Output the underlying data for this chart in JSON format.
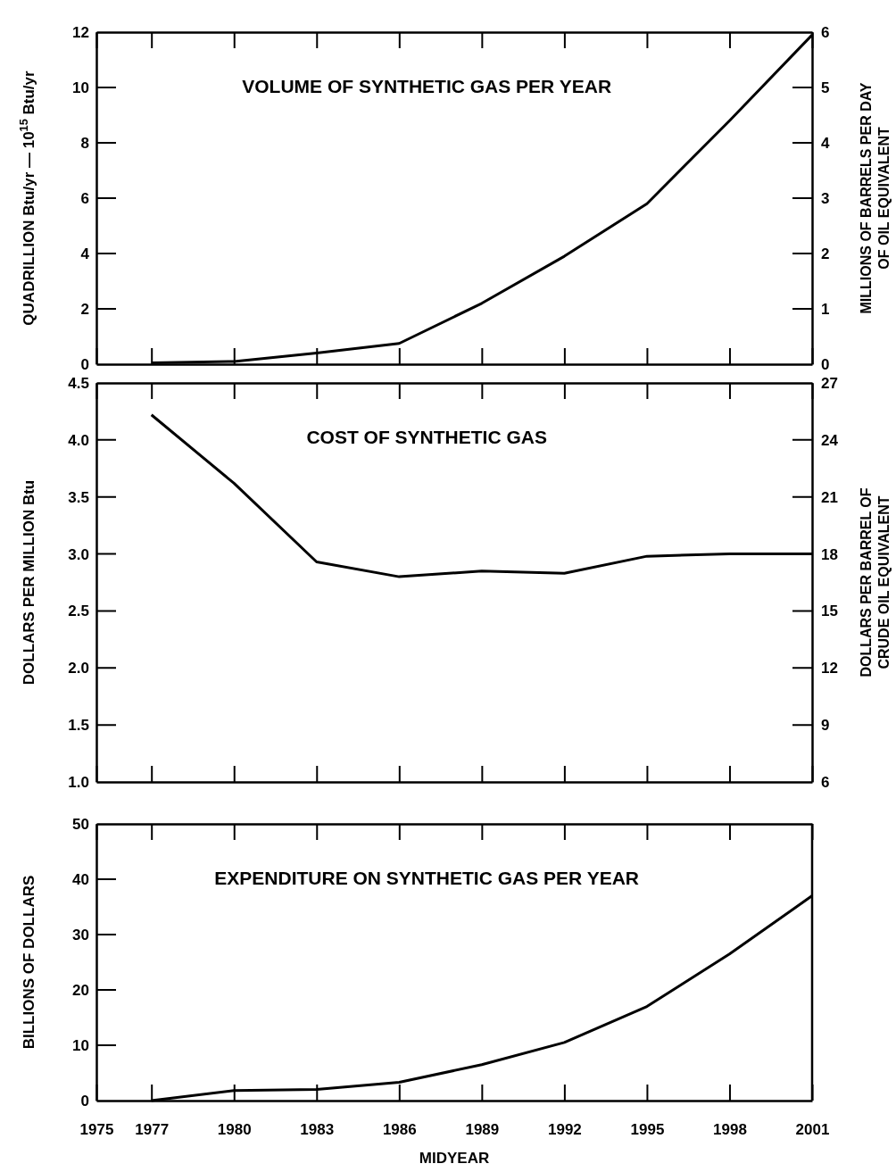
{
  "chart_data": [
    {
      "type": "line",
      "title": "VOLUME OF SYNTHETIC GAS PER YEAR",
      "ylabel": "QUADRILLION Btu/yr — 10$^{15}$ Btu/yr",
      "y2label": "MILLIONS OF BARRELS PER DAY\nOF OIL EQUIVALENT",
      "x": [
        1977,
        1980,
        1983,
        1986,
        1989,
        1992,
        1995,
        1998,
        2001
      ],
      "series": [
        {
          "color": "#000000",
          "values": [
            0.05,
            0.1,
            0.4,
            0.75,
            2.2,
            3.9,
            5.8,
            8.8,
            11.9
          ]
        }
      ],
      "xlim": [
        1975,
        2001
      ],
      "xticks": [
        1975,
        1977,
        1980,
        1983,
        1986,
        1989,
        1992,
        1995,
        1998,
        2001
      ],
      "ylim": [
        0,
        12
      ],
      "yticks": [
        0,
        2,
        4,
        6,
        8,
        10,
        12
      ],
      "y2lim": [
        0,
        6
      ],
      "y2ticks": [
        0,
        1,
        2,
        3,
        4,
        5,
        6
      ],
      "tick_labels": "y"
    },
    {
      "type": "line",
      "title": "COST OF SYNTHETIC GAS",
      "ylabel": "DOLLARS PER MILLION Btu",
      "y2label": "DOLLARS PER BARREL OF\nCRUDE OIL EQUIVALENT",
      "x": [
        1977,
        1980,
        1983,
        1986,
        1989,
        1992,
        1995,
        1998,
        2001
      ],
      "series": [
        {
          "color": "#000000",
          "values": [
            4.22,
            3.62,
            2.93,
            2.8,
            2.85,
            2.83,
            2.98,
            3.0,
            3.0
          ]
        }
      ],
      "xlim": [
        1975,
        2001
      ],
      "xticks": [
        1975,
        1977,
        1980,
        1983,
        1986,
        1989,
        1992,
        1995,
        1998,
        2001
      ],
      "ylim": [
        1.0,
        4.5
      ],
      "yticks": [
        {
          "value": 1.0,
          "label": "1.0"
        },
        1.5,
        {
          "value": 2.0,
          "label": "2.0"
        },
        2.5,
        {
          "value": 3.0,
          "label": "3.0"
        },
        3.5,
        {
          "value": 4.0,
          "label": "4.0"
        },
        4.5
      ],
      "y2lim": [
        6,
        27
      ],
      "y2ticks": [
        6,
        9,
        12,
        15,
        18,
        21,
        24,
        27
      ],
      "tick_labels": "y"
    },
    {
      "type": "line",
      "title": "EXPENDITURE ON SYNTHETIC GAS PER YEAR",
      "ylabel": "BILLIONS OF DOLLARS",
      "xlabel": "MIDYEAR",
      "x": [
        1977,
        1980,
        1983,
        1986,
        1989,
        1992,
        1995,
        1998,
        2001
      ],
      "series": [
        {
          "color": "#000000",
          "values": [
            0,
            1.8,
            2,
            3.3,
            6.5,
            10.5,
            17,
            26.5,
            37
          ]
        }
      ],
      "xlim": [
        1975,
        2001
      ],
      "xticks": [
        1975,
        1977,
        1980,
        1983,
        1986,
        1989,
        1992,
        1995,
        1998,
        2001
      ],
      "ylim": [
        0,
        50
      ],
      "yticks": [
        0,
        10,
        20,
        30,
        40,
        50
      ]
    }
  ]
}
